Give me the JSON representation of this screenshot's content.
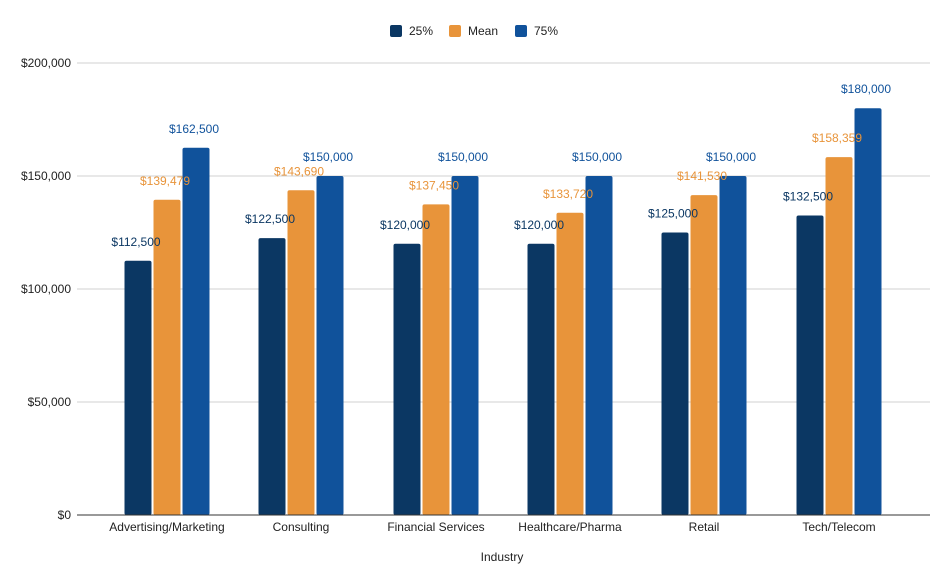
{
  "chart_data": {
    "type": "bar",
    "title": "",
    "xlabel": "Industry",
    "ylabel": "",
    "ylim": [
      0,
      200000
    ],
    "y_ticks": [
      0,
      50000,
      100000,
      150000,
      200000
    ],
    "y_tick_labels": [
      "$0",
      "$50,000",
      "$100,000",
      "$150,000",
      "$200,000"
    ],
    "grid": true,
    "legend_position": "top-center",
    "categories": [
      "Advertising/Marketing",
      "Consulting",
      "Financial Services",
      "Healthcare/Pharma",
      "Retail",
      "Tech/Telecom"
    ],
    "series": [
      {
        "name": "25%",
        "color": "#0b3763",
        "label_color": "#0b3763",
        "values": [
          112500,
          122500,
          120000,
          120000,
          125000,
          132500
        ],
        "labels": [
          "$112,500",
          "$122,500",
          "$120,000",
          "$120,000",
          "$125,000",
          "$132,500"
        ]
      },
      {
        "name": "Mean",
        "color": "#e8943a",
        "label_color": "#e8943a",
        "values": [
          139479,
          143690,
          137450,
          133720,
          141530,
          158359
        ],
        "labels": [
          "$139,479",
          "$143,690",
          "$137,450",
          "$133,720",
          "$141,530",
          "$158,359"
        ]
      },
      {
        "name": "75%",
        "color": "#10529b",
        "label_color": "#10529b",
        "values": [
          162500,
          150000,
          150000,
          150000,
          150000,
          180000
        ],
        "labels": [
          "$162,500",
          "$150,000",
          "$150,000",
          "$150,000",
          "$150,000",
          "$180,000"
        ]
      }
    ]
  }
}
